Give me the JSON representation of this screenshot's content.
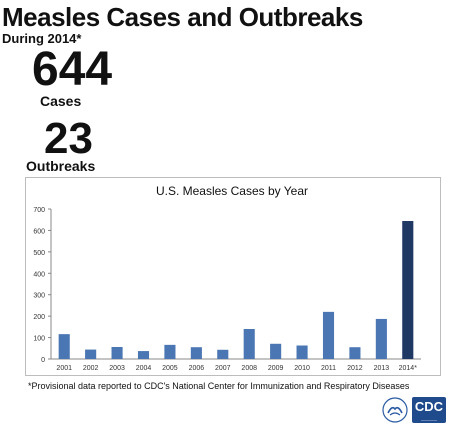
{
  "header": {
    "title": "Measles Cases and Outbreaks",
    "subtitle": "During 2014*"
  },
  "stats": {
    "cases_value": "644",
    "cases_label": "Cases",
    "outbreaks_value": "23",
    "outbreaks_label": "Outbreaks"
  },
  "chart_data": {
    "type": "bar",
    "title": "U.S. Measles Cases by Year",
    "xlabel": "",
    "ylabel": "",
    "categories": [
      "2001",
      "2002",
      "2003",
      "2004",
      "2005",
      "2006",
      "2007",
      "2008",
      "2009",
      "2010",
      "2011",
      "2012",
      "2013",
      "2014*"
    ],
    "values": [
      116,
      44,
      56,
      37,
      66,
      55,
      43,
      140,
      71,
      63,
      220,
      55,
      187,
      644
    ],
    "ylim": [
      0,
      700
    ],
    "yticks": [
      0,
      100,
      200,
      300,
      400,
      500,
      600,
      700
    ],
    "colors": {
      "bar": "#4a76b4",
      "highlight_bar": "#1f3864"
    },
    "highlight_category": "2014*",
    "grid": false,
    "legend": "none"
  },
  "footnote": "*Provisional data reported to CDC's National Center for Immunization and Respiratory Diseases",
  "logos": {
    "cdc_text": "CDC",
    "hhs_icon": "hhs-eagle-icon"
  }
}
